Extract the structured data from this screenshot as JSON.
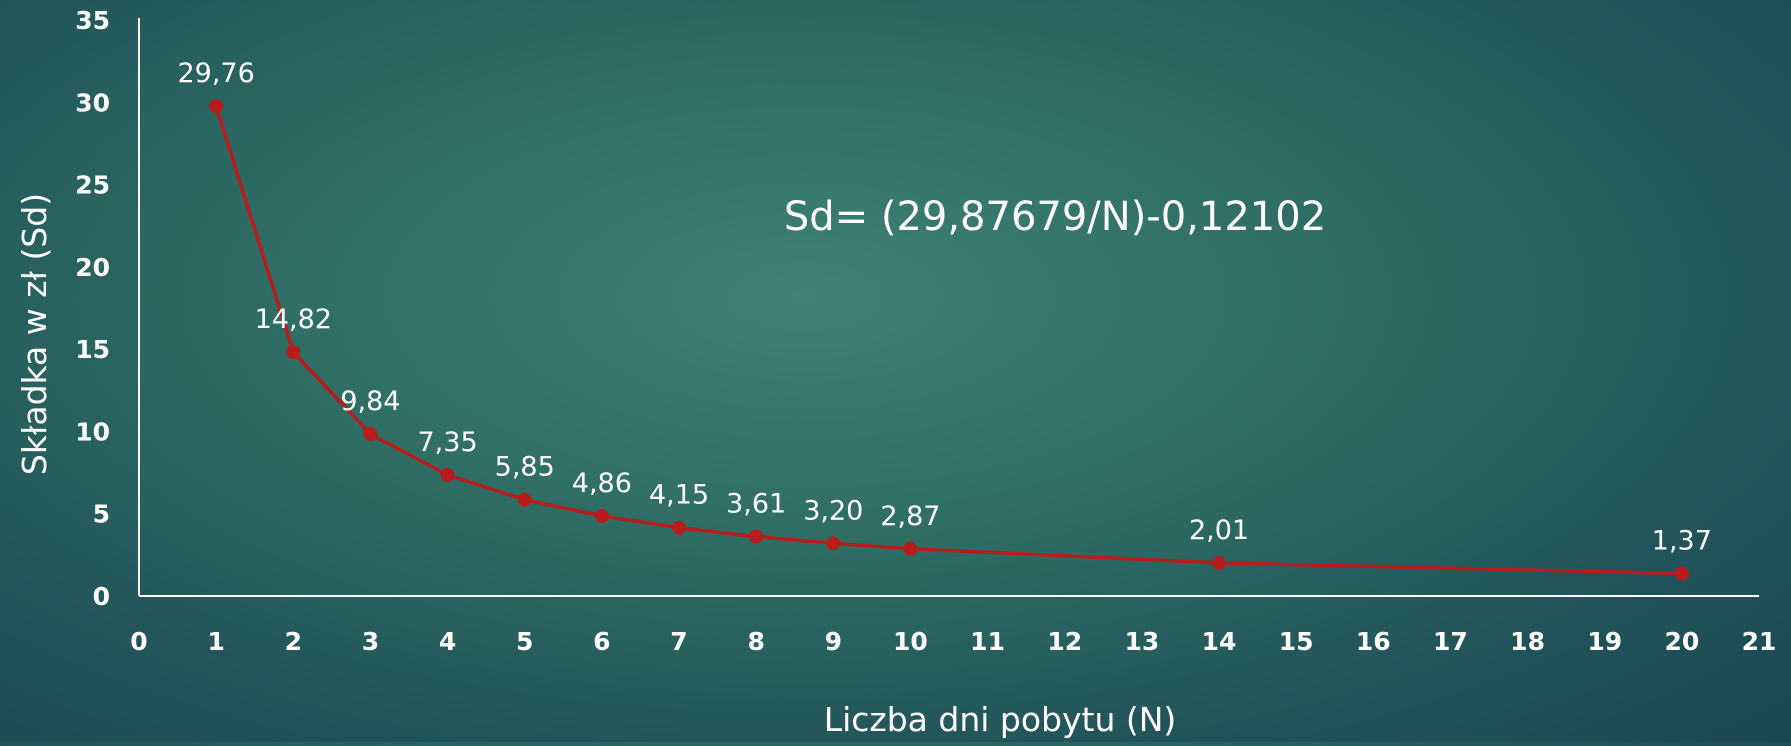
{
  "chart_data": {
    "type": "line",
    "title": "",
    "xlabel": "Liczba dni pobytu (N)",
    "ylabel": "Składka w zł (Sd)",
    "annotation": "Sd= (29,87679/N)-0,12102",
    "xlim": [
      0,
      21
    ],
    "ylim": [
      0,
      35
    ],
    "x_ticks": [
      "0",
      "1",
      "2",
      "3",
      "4",
      "5",
      "6",
      "7",
      "8",
      "9",
      "10",
      "11",
      "12",
      "13",
      "14",
      "15",
      "16",
      "17",
      "18",
      "19",
      "20",
      "21"
    ],
    "y_ticks": [
      "0",
      "5",
      "10",
      "15",
      "20",
      "25",
      "30",
      "35"
    ],
    "grid": false,
    "legend": "none",
    "series": [
      {
        "color": "#b81c1c",
        "x": [
          1,
          2,
          3,
          4,
          5,
          6,
          7,
          8,
          9,
          10,
          14,
          20
        ],
        "y": [
          29.76,
          14.82,
          9.84,
          7.35,
          5.85,
          4.86,
          4.15,
          3.61,
          3.2,
          2.87,
          2.01,
          1.37
        ],
        "labels": [
          "29,76",
          "14,82",
          "9,84",
          "7,35",
          "5,85",
          "4,86",
          "4,15",
          "3,61",
          "3,20",
          "2,87",
          "2,01",
          "1,37"
        ]
      }
    ]
  }
}
